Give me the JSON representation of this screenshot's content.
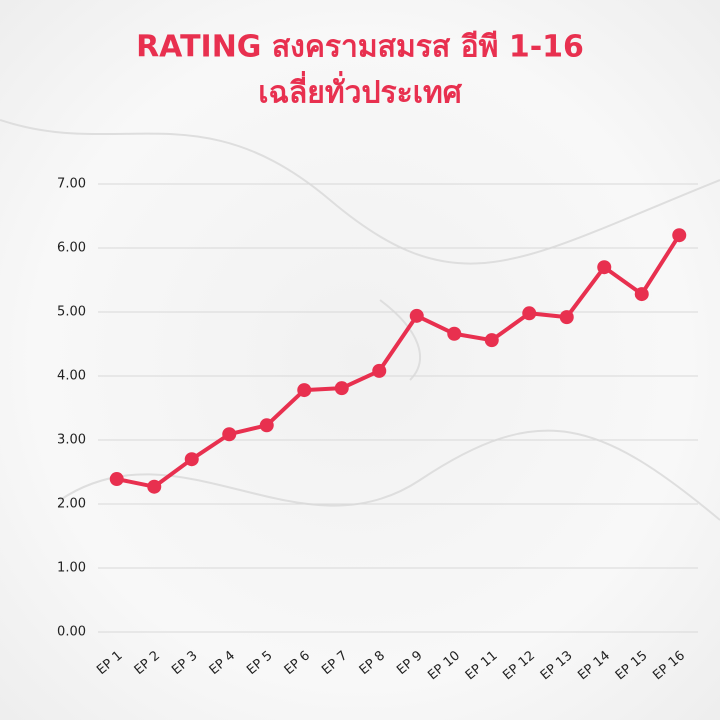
{
  "chart_data": {
    "type": "line",
    "title": "RATING สงครามสมรส อีพี 1-16",
    "subtitle": "เฉลี่ยทั่วประเทศ",
    "categories": [
      "EP 1",
      "EP 2",
      "EP 3",
      "EP 4",
      "EP 5",
      "EP 6",
      "EP 7",
      "EP 8",
      "EP 9",
      "EP 10",
      "EP 11",
      "EP 12",
      "EP 13",
      "EP 14",
      "EP 15",
      "EP 16"
    ],
    "values": [
      2.39,
      2.27,
      2.7,
      3.09,
      3.23,
      3.78,
      3.81,
      4.08,
      4.94,
      4.66,
      4.56,
      4.98,
      4.92,
      5.7,
      5.28,
      6.2
    ],
    "color": "#e8304f",
    "ylim": [
      0,
      7
    ],
    "yticks": [
      {
        "value": 0,
        "label": "0.00"
      },
      {
        "value": 1,
        "label": "1.00"
      },
      {
        "value": 2,
        "label": "2.00"
      },
      {
        "value": 3,
        "label": "3.00"
      },
      {
        "value": 4,
        "label": "4.00"
      },
      {
        "value": 5,
        "label": "5.00"
      },
      {
        "value": 6,
        "label": "6.00"
      },
      {
        "value": 7,
        "label": "7.00"
      }
    ],
    "grid": true
  }
}
